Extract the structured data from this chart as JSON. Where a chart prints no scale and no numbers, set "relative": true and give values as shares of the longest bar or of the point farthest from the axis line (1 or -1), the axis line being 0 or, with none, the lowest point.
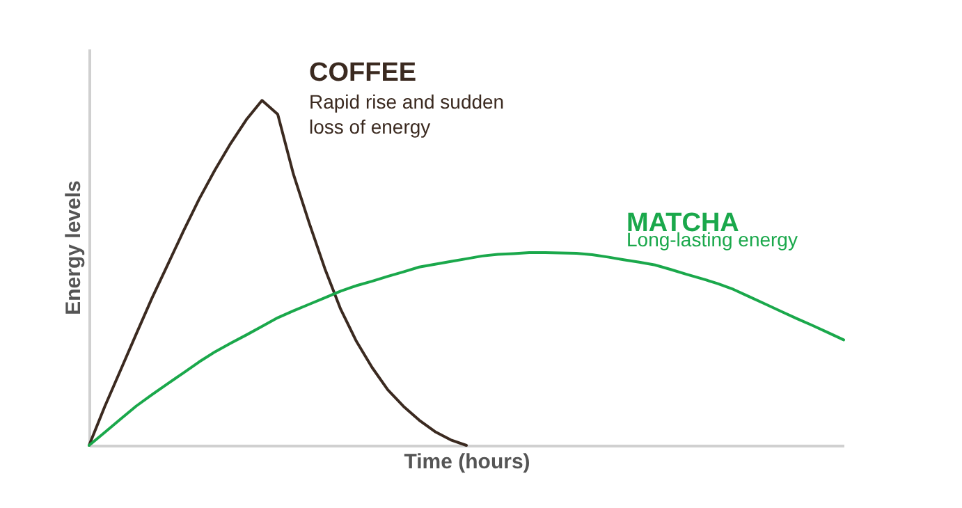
{
  "chart_data": {
    "type": "line",
    "relative": true,
    "xlabel": "Time (hours)",
    "ylabel": "Energy levels",
    "grid": false,
    "categories": [
      null,
      null,
      null,
      null,
      null,
      null,
      null,
      null,
      null,
      null,
      null,
      null,
      null,
      null,
      null,
      null,
      null,
      null,
      null,
      null,
      null,
      null,
      null,
      null,
      null,
      null,
      null,
      null,
      null,
      null,
      null,
      null,
      null,
      null,
      null,
      null,
      null,
      null,
      null,
      null,
      null,
      null,
      null,
      null,
      null,
      null,
      null,
      null,
      null
    ],
    "series": [
      {
        "name": "COFFEE",
        "color": "#3b2a20",
        "values": [
          0,
          0.113,
          0.218,
          0.323,
          0.427,
          0.524,
          0.621,
          0.714,
          0.798,
          0.875,
          0.944,
          1,
          0.96,
          0.786,
          0.645,
          0.512,
          0.395,
          0.302,
          0.226,
          0.161,
          0.113,
          0.073,
          0.04,
          0.016,
          0,
          null,
          null,
          null,
          null,
          null,
          null,
          null,
          null,
          null,
          null,
          null,
          null,
          null,
          null,
          null,
          null,
          null,
          null,
          null,
          null,
          null,
          null,
          null,
          null
        ]
      },
      {
        "name": "MATCHA",
        "color": "#1aa84b",
        "values": [
          0,
          0.038,
          0.076,
          0.114,
          0.147,
          0.179,
          0.21,
          0.242,
          0.271,
          0.296,
          0.32,
          0.345,
          0.37,
          0.39,
          0.409,
          0.428,
          0.447,
          0.463,
          0.476,
          0.49,
          0.503,
          0.517,
          0.525,
          0.533,
          0.541,
          0.549,
          0.554,
          0.556,
          0.559,
          0.559,
          0.558,
          0.557,
          0.553,
          0.546,
          0.538,
          0.531,
          0.523,
          0.51,
          0.496,
          0.483,
          0.469,
          0.452,
          0.431,
          0.41,
          0.389,
          0.368,
          0.348,
          0.327,
          0.306
        ]
      }
    ],
    "annotations": [
      "Rapid rise and sudden loss of energy",
      "Long-lasting energy"
    ]
  }
}
